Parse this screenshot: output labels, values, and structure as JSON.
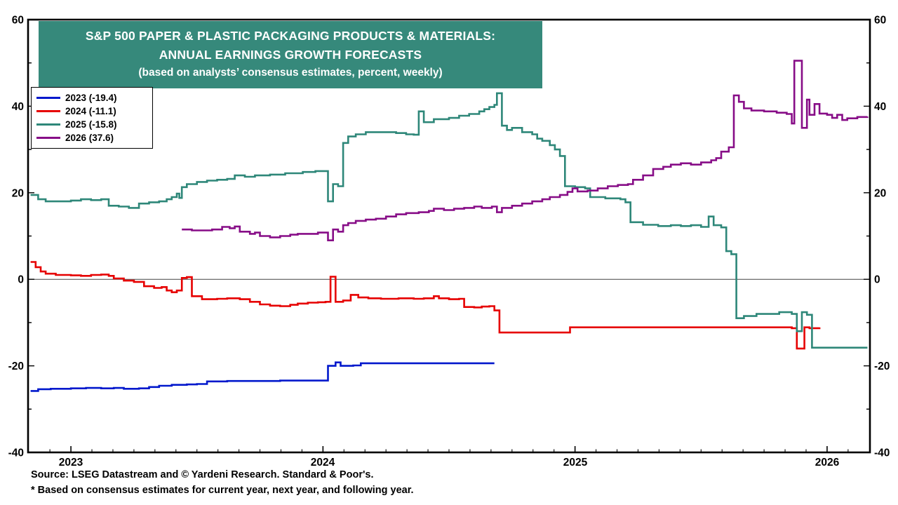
{
  "title": {
    "line1": "S&P 500 PAPER & PLASTIC PACKAGING PRODUCTS & MATERIALS:",
    "line2": "ANNUAL EARNINGS GROWTH FORECASTS",
    "line3": "(based on analysts’ consensus estimates, percent, weekly)",
    "bg_color": "#36897B",
    "text_color": "#FFFFFF"
  },
  "footer": {
    "source_line": "Source: LSEG Datastream and © Yardeni Research. Standard & Poor's.",
    "note_line": "* Based on consensus estimates for current year, next year, and following year."
  },
  "chart_data": {
    "type": "line",
    "style": "step-after-weekly",
    "grid": false,
    "zero_line": true,
    "legend_position": "top-left",
    "y_axis": {
      "min": -40,
      "max": 60,
      "tick_step": 20,
      "ticks": [
        60,
        40,
        20,
        0,
        -20,
        -40
      ],
      "unit": "percent"
    },
    "x_axis": {
      "min": 2022.83,
      "max": 2026.17,
      "tick_years": [
        2023,
        2024,
        2025,
        2026
      ]
    },
    "series": [
      {
        "name": "2023",
        "label": "2023 (-19.4)",
        "final_value": -19.4,
        "color": "#0018CC",
        "points": [
          [
            2022.84,
            -25.8
          ],
          [
            2022.87,
            -25.4
          ],
          [
            2022.92,
            -25.3
          ],
          [
            2023.0,
            -25.2
          ],
          [
            2023.06,
            -25.1
          ],
          [
            2023.12,
            -25.2
          ],
          [
            2023.17,
            -25.1
          ],
          [
            2023.21,
            -25.3
          ],
          [
            2023.27,
            -25.2
          ],
          [
            2023.31,
            -24.9
          ],
          [
            2023.35,
            -24.6
          ],
          [
            2023.4,
            -24.4
          ],
          [
            2023.46,
            -24.3
          ],
          [
            2023.5,
            -24.2
          ],
          [
            2023.54,
            -23.6
          ],
          [
            2023.62,
            -23.5
          ],
          [
            2023.73,
            -23.5
          ],
          [
            2023.83,
            -23.4
          ],
          [
            2023.92,
            -23.4
          ],
          [
            2023.98,
            -23.4
          ],
          [
            2024.02,
            -20.0
          ],
          [
            2024.05,
            -19.2
          ],
          [
            2024.07,
            -20.0
          ],
          [
            2024.12,
            -19.9
          ],
          [
            2024.15,
            -19.4
          ],
          [
            2024.3,
            -19.4
          ],
          [
            2024.45,
            -19.4
          ],
          [
            2024.58,
            -19.4
          ],
          [
            2024.68,
            -19.4
          ]
        ]
      },
      {
        "name": "2024",
        "label": "2024 (-11.1)",
        "final_value": -11.1,
        "color": "#E60000",
        "points": [
          [
            2022.84,
            4.0
          ],
          [
            2022.86,
            2.8
          ],
          [
            2022.88,
            1.8
          ],
          [
            2022.9,
            1.3
          ],
          [
            2022.94,
            1.0
          ],
          [
            2023.0,
            0.9
          ],
          [
            2023.04,
            0.8
          ],
          [
            2023.08,
            1.0
          ],
          [
            2023.12,
            1.1
          ],
          [
            2023.15,
            0.8
          ],
          [
            2023.17,
            0.2
          ],
          [
            2023.21,
            -0.3
          ],
          [
            2023.25,
            -0.6
          ],
          [
            2023.29,
            -1.6
          ],
          [
            2023.33,
            -2.0
          ],
          [
            2023.36,
            -1.8
          ],
          [
            2023.38,
            -2.6
          ],
          [
            2023.4,
            -3.0
          ],
          [
            2023.42,
            -2.6
          ],
          [
            2023.44,
            0.3
          ],
          [
            2023.46,
            0.5
          ],
          [
            2023.48,
            -3.9
          ],
          [
            2023.52,
            -4.6
          ],
          [
            2023.58,
            -4.5
          ],
          [
            2023.62,
            -4.4
          ],
          [
            2023.67,
            -4.6
          ],
          [
            2023.71,
            -5.2
          ],
          [
            2023.75,
            -5.8
          ],
          [
            2023.79,
            -6.1
          ],
          [
            2023.83,
            -6.2
          ],
          [
            2023.87,
            -5.9
          ],
          [
            2023.9,
            -5.6
          ],
          [
            2023.94,
            -5.4
          ],
          [
            2023.98,
            -5.3
          ],
          [
            2024.01,
            -5.2
          ],
          [
            2024.03,
            0.6
          ],
          [
            2024.05,
            -5.2
          ],
          [
            2024.08,
            -4.9
          ],
          [
            2024.11,
            -3.6
          ],
          [
            2024.14,
            -4.2
          ],
          [
            2024.18,
            -4.4
          ],
          [
            2024.23,
            -4.5
          ],
          [
            2024.3,
            -4.4
          ],
          [
            2024.36,
            -4.5
          ],
          [
            2024.4,
            -4.4
          ],
          [
            2024.44,
            -3.9
          ],
          [
            2024.46,
            -4.4
          ],
          [
            2024.5,
            -4.6
          ],
          [
            2024.54,
            -4.5
          ],
          [
            2024.56,
            -6.4
          ],
          [
            2024.6,
            -6.5
          ],
          [
            2024.63,
            -6.3
          ],
          [
            2024.66,
            -6.2
          ],
          [
            2024.68,
            -7.2
          ],
          [
            2024.7,
            -12.3
          ],
          [
            2024.8,
            -12.3
          ],
          [
            2024.9,
            -12.3
          ],
          [
            2024.96,
            -12.3
          ],
          [
            2024.98,
            -11.1
          ],
          [
            2025.1,
            -11.1
          ],
          [
            2025.3,
            -11.1
          ],
          [
            2025.5,
            -11.1
          ],
          [
            2025.7,
            -11.1
          ],
          [
            2025.84,
            -11.1
          ],
          [
            2025.86,
            -11.3
          ],
          [
            2025.88,
            -16.0
          ],
          [
            2025.9,
            -16.0
          ],
          [
            2025.91,
            -11.1
          ],
          [
            2025.93,
            -11.3
          ],
          [
            2025.97,
            -11.1
          ]
        ]
      },
      {
        "name": "2025",
        "label": "2025 (-15.8)",
        "final_value": -15.8,
        "color": "#2E8779",
        "points": [
          [
            2022.84,
            19.5
          ],
          [
            2022.87,
            18.5
          ],
          [
            2022.9,
            18.0
          ],
          [
            2022.96,
            18.0
          ],
          [
            2023.0,
            18.2
          ],
          [
            2023.04,
            18.5
          ],
          [
            2023.08,
            18.3
          ],
          [
            2023.12,
            18.5
          ],
          [
            2023.15,
            17.0
          ],
          [
            2023.19,
            16.8
          ],
          [
            2023.23,
            16.5
          ],
          [
            2023.27,
            17.5
          ],
          [
            2023.31,
            17.8
          ],
          [
            2023.35,
            18.0
          ],
          [
            2023.38,
            18.5
          ],
          [
            2023.4,
            19.0
          ],
          [
            2023.42,
            19.8
          ],
          [
            2023.43,
            18.8
          ],
          [
            2023.44,
            21.3
          ],
          [
            2023.46,
            22.0
          ],
          [
            2023.5,
            22.5
          ],
          [
            2023.54,
            22.8
          ],
          [
            2023.58,
            23.0
          ],
          [
            2023.62,
            23.2
          ],
          [
            2023.65,
            24.0
          ],
          [
            2023.69,
            23.7
          ],
          [
            2023.73,
            24.0
          ],
          [
            2023.79,
            24.2
          ],
          [
            2023.85,
            24.5
          ],
          [
            2023.92,
            24.8
          ],
          [
            2023.97,
            25.0
          ],
          [
            2024.02,
            18.0
          ],
          [
            2024.04,
            22.0
          ],
          [
            2024.06,
            21.5
          ],
          [
            2024.08,
            31.5
          ],
          [
            2024.1,
            33.0
          ],
          [
            2024.13,
            33.5
          ],
          [
            2024.17,
            34.0
          ],
          [
            2024.25,
            34.0
          ],
          [
            2024.29,
            33.8
          ],
          [
            2024.33,
            33.5
          ],
          [
            2024.36,
            33.4
          ],
          [
            2024.38,
            38.8
          ],
          [
            2024.4,
            36.3
          ],
          [
            2024.44,
            37.0
          ],
          [
            2024.5,
            37.3
          ],
          [
            2024.54,
            37.8
          ],
          [
            2024.58,
            38.2
          ],
          [
            2024.62,
            38.8
          ],
          [
            2024.64,
            39.3
          ],
          [
            2024.66,
            39.8
          ],
          [
            2024.68,
            40.3
          ],
          [
            2024.69,
            43.0
          ],
          [
            2024.71,
            35.5
          ],
          [
            2024.73,
            34.5
          ],
          [
            2024.75,
            35.0
          ],
          [
            2024.79,
            34.0
          ],
          [
            2024.83,
            33.5
          ],
          [
            2024.85,
            32.5
          ],
          [
            2024.87,
            32.0
          ],
          [
            2024.9,
            31.0
          ],
          [
            2024.92,
            30.0
          ],
          [
            2024.94,
            28.5
          ],
          [
            2024.96,
            21.5
          ],
          [
            2025.0,
            21.3
          ],
          [
            2025.04,
            21.0
          ],
          [
            2025.06,
            19.0
          ],
          [
            2025.12,
            18.7
          ],
          [
            2025.18,
            18.5
          ],
          [
            2025.2,
            17.8
          ],
          [
            2025.22,
            13.2
          ],
          [
            2025.27,
            12.6
          ],
          [
            2025.33,
            12.3
          ],
          [
            2025.38,
            12.5
          ],
          [
            2025.42,
            12.3
          ],
          [
            2025.46,
            12.5
          ],
          [
            2025.5,
            12.1
          ],
          [
            2025.53,
            14.5
          ],
          [
            2025.55,
            12.5
          ],
          [
            2025.58,
            12.0
          ],
          [
            2025.6,
            6.5
          ],
          [
            2025.62,
            5.8
          ],
          [
            2025.64,
            -9.0
          ],
          [
            2025.67,
            -8.5
          ],
          [
            2025.72,
            -8.0
          ],
          [
            2025.77,
            -8.0
          ],
          [
            2025.81,
            -7.6
          ],
          [
            2025.85,
            -7.6
          ],
          [
            2025.86,
            -8.0
          ],
          [
            2025.88,
            -12.0
          ],
          [
            2025.9,
            -7.6
          ],
          [
            2025.92,
            -8.2
          ],
          [
            2025.94,
            -15.8
          ],
          [
            2026.0,
            -15.8
          ],
          [
            2026.08,
            -15.8
          ],
          [
            2026.16,
            -15.8
          ]
        ]
      },
      {
        "name": "2026",
        "label": "2026 (37.6)",
        "final_value": 37.6,
        "color": "#870D87",
        "points": [
          [
            2023.44,
            11.5
          ],
          [
            2023.48,
            11.3
          ],
          [
            2023.52,
            11.3
          ],
          [
            2023.56,
            11.5
          ],
          [
            2023.58,
            11.5
          ],
          [
            2023.6,
            12.1
          ],
          [
            2023.63,
            11.8
          ],
          [
            2023.65,
            12.2
          ],
          [
            2023.67,
            11.0
          ],
          [
            2023.71,
            10.5
          ],
          [
            2023.73,
            10.8
          ],
          [
            2023.75,
            10.0
          ],
          [
            2023.79,
            9.7
          ],
          [
            2023.83,
            10.0
          ],
          [
            2023.87,
            10.3
          ],
          [
            2023.9,
            10.5
          ],
          [
            2023.94,
            10.5
          ],
          [
            2023.98,
            10.8
          ],
          [
            2024.02,
            9.0
          ],
          [
            2024.04,
            11.5
          ],
          [
            2024.06,
            11.0
          ],
          [
            2024.08,
            12.5
          ],
          [
            2024.1,
            13.0
          ],
          [
            2024.13,
            13.5
          ],
          [
            2024.17,
            13.8
          ],
          [
            2024.21,
            14.0
          ],
          [
            2024.25,
            14.5
          ],
          [
            2024.29,
            15.0
          ],
          [
            2024.33,
            15.3
          ],
          [
            2024.38,
            15.5
          ],
          [
            2024.42,
            15.8
          ],
          [
            2024.44,
            16.3
          ],
          [
            2024.48,
            16.0
          ],
          [
            2024.52,
            16.3
          ],
          [
            2024.56,
            16.5
          ],
          [
            2024.6,
            16.8
          ],
          [
            2024.63,
            16.5
          ],
          [
            2024.67,
            16.8
          ],
          [
            2024.69,
            15.5
          ],
          [
            2024.71,
            16.5
          ],
          [
            2024.75,
            17.0
          ],
          [
            2024.79,
            17.5
          ],
          [
            2024.83,
            18.0
          ],
          [
            2024.87,
            18.5
          ],
          [
            2024.9,
            19.0
          ],
          [
            2024.94,
            19.5
          ],
          [
            2024.97,
            20.2
          ],
          [
            2024.99,
            21.0
          ],
          [
            2025.01,
            20.3
          ],
          [
            2025.05,
            20.5
          ],
          [
            2025.09,
            21.0
          ],
          [
            2025.13,
            21.5
          ],
          [
            2025.17,
            21.8
          ],
          [
            2025.21,
            22.0
          ],
          [
            2025.23,
            23.0
          ],
          [
            2025.27,
            24.0
          ],
          [
            2025.31,
            25.5
          ],
          [
            2025.35,
            26.0
          ],
          [
            2025.38,
            26.5
          ],
          [
            2025.42,
            26.8
          ],
          [
            2025.46,
            26.5
          ],
          [
            2025.5,
            27.0
          ],
          [
            2025.54,
            27.5
          ],
          [
            2025.56,
            28.0
          ],
          [
            2025.58,
            29.5
          ],
          [
            2025.61,
            30.5
          ],
          [
            2025.63,
            42.5
          ],
          [
            2025.65,
            41.0
          ],
          [
            2025.67,
            39.5
          ],
          [
            2025.7,
            39.0
          ],
          [
            2025.75,
            38.8
          ],
          [
            2025.8,
            38.5
          ],
          [
            2025.84,
            38.2
          ],
          [
            2025.86,
            36.0
          ],
          [
            2025.87,
            50.5
          ],
          [
            2025.89,
            50.5
          ],
          [
            2025.9,
            35.0
          ],
          [
            2025.92,
            41.5
          ],
          [
            2025.93,
            38.0
          ],
          [
            2025.95,
            40.5
          ],
          [
            2025.97,
            38.3
          ],
          [
            2026.0,
            38.0
          ],
          [
            2026.02,
            37.3
          ],
          [
            2026.04,
            38.0
          ],
          [
            2026.06,
            36.8
          ],
          [
            2026.08,
            37.2
          ],
          [
            2026.12,
            37.5
          ],
          [
            2026.16,
            37.6
          ]
        ]
      }
    ]
  }
}
